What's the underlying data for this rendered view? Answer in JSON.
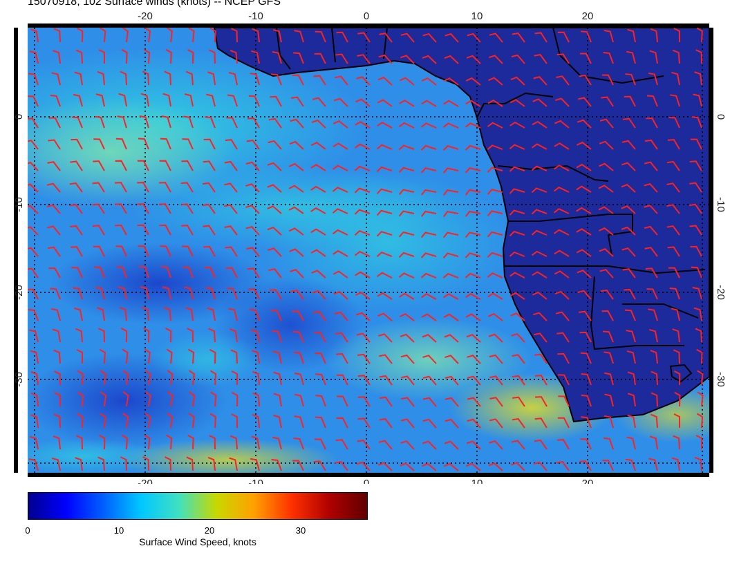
{
  "title": "15070918, 102 Surface winds (knots) -- NCEP GFS",
  "map": {
    "lon_range": [
      -30,
      30
    ],
    "lat_range": [
      -40,
      10
    ],
    "lon_ticks": [
      "-20",
      "-10",
      "0",
      "10",
      "20"
    ],
    "lat_ticks": [
      "0",
      "-10",
      "-20",
      "-30"
    ],
    "grid": "dotted 10-degree graticule",
    "barb_color": "#ff2020",
    "land_color": "#1c2a9c"
  },
  "colorbar": {
    "title": "Surface Wind Speed, knots",
    "tick_labels": [
      "0",
      "10",
      "20",
      "30"
    ],
    "range": [
      0,
      37
    ],
    "colors": [
      "#00008f",
      "#0000ff",
      "#0060ff",
      "#00c8ff",
      "#40e0c0",
      "#c8d800",
      "#ffa000",
      "#ff3000",
      "#b00000",
      "#600000"
    ]
  }
}
